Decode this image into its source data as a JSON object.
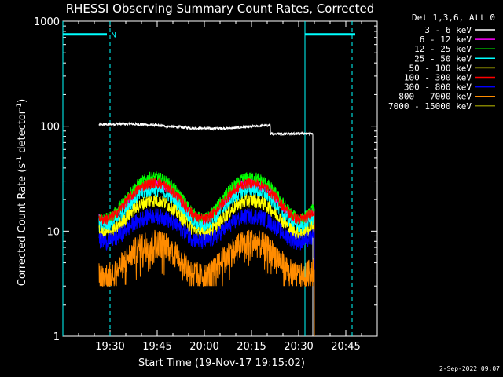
{
  "chart_data": {
    "type": "line",
    "title": "RHESSI Observing Summary Count Rates, Corrected",
    "xlabel": "Start Time (19-Nov-17 19:15:02)",
    "ylabel_main": "Corrected Count Rate (s",
    "ylabel_sup1": "-1",
    "ylabel_mid": " detector",
    "ylabel_sup2": "-1",
    "ylabel_end": ")",
    "y_scale": "log",
    "ylim": [
      1,
      1000
    ],
    "xlim_min": [
      15,
      115
    ],
    "x_tick_labels": [
      "19:30",
      "19:45",
      "20:00",
      "20:15",
      "20:30",
      "20:45"
    ],
    "x_tick_min": [
      30,
      45,
      60,
      75,
      90,
      105
    ],
    "y_tick_labels": [
      "1",
      "10",
      "100",
      "1000"
    ],
    "y_tick_values": [
      1,
      10,
      100,
      1000
    ],
    "legend_title": "Det 1,3,6, Att 0",
    "legend_position": "outside-right",
    "series": [
      {
        "name": "3 - 6 keV",
        "color": "#ffffff",
        "base": 100,
        "amp": 1.0,
        "noise": 0.03,
        "start": 26.5,
        "end": 94.5
      },
      {
        "name": "6 - 12 keV",
        "color": "#ff00ff",
        "base": 12.5,
        "amp": 3.9,
        "noise": 0.04,
        "start": 26.5,
        "end": 95
      },
      {
        "name": "12 - 25 keV",
        "color": "#00ff00",
        "base": 13,
        "amp": 4.3,
        "noise": 0.05,
        "start": 26.5,
        "end": 95
      },
      {
        "name": "25 - 50 keV",
        "color": "#00ffff",
        "base": 11,
        "amp": 3.8,
        "noise": 0.05,
        "start": 26.5,
        "end": 95
      },
      {
        "name": "50 - 100 keV",
        "color": "#ffff00",
        "base": 9.5,
        "amp": 3.4,
        "noise": 0.05,
        "start": 26.5,
        "end": 95
      },
      {
        "name": "100 - 300 keV",
        "color": "#ff0000",
        "base": 13,
        "amp": 3.7,
        "noise": 0.04,
        "start": 26.5,
        "end": 95
      },
      {
        "name": "300 - 800 keV",
        "color": "#0000ff",
        "base": 8,
        "amp": 2.7,
        "noise": 0.06,
        "start": 26.5,
        "end": 95
      },
      {
        "name": "800 - 7000 keV",
        "color": "#ff8c00",
        "base": 3.8,
        "amp": 3.5,
        "noise": 0.1,
        "start": 26.5,
        "end": 95
      },
      {
        "name": "7000 - 15000 keV",
        "color": "#808000",
        "base": 0,
        "amp": 0,
        "noise": 0,
        "start": 0,
        "end": 0
      }
    ],
    "attenuator_bars": [
      {
        "start_min": 15,
        "end_min": 29,
        "color": "#00ffff"
      },
      {
        "start_min": 92,
        "end_min": 108,
        "color": "#00ffff"
      }
    ],
    "night_marker": "N",
    "night_lines_min": [
      15,
      30,
      92,
      107
    ],
    "grid": false
  },
  "timestamp": "2-Sep-2022 09:07"
}
